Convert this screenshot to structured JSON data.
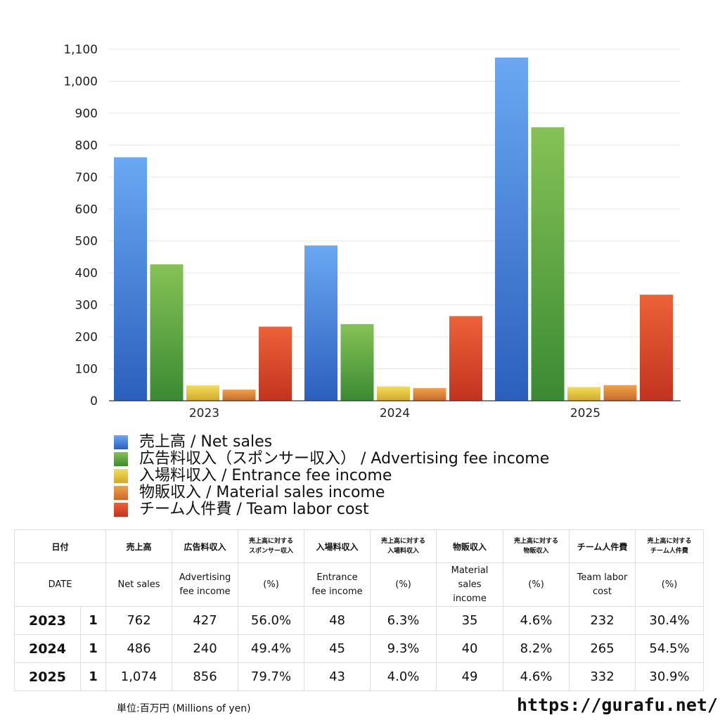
{
  "chart_data": {
    "type": "bar",
    "categories": [
      "2023",
      "2024",
      "2025"
    ],
    "ylim": [
      0,
      1100
    ],
    "yticks": [
      "0",
      "100",
      "200",
      "300",
      "400",
      "500",
      "600",
      "700",
      "800",
      "900",
      "1,000",
      "1,100"
    ],
    "grid": true,
    "legend_position": "bottom-left",
    "series": [
      {
        "name": "売上高 / Net sales",
        "values": [
          762,
          486,
          1074
        ],
        "color_top": "#6aa8f3",
        "color_bottom": "#2b5fbd"
      },
      {
        "name": "広告料収入（スポンサー収入） / Advertising fee income",
        "values": [
          427,
          240,
          856
        ],
        "color_top": "#86c256",
        "color_bottom": "#3a8a33"
      },
      {
        "name": "入場料収入 / Entrance fee income",
        "values": [
          48,
          45,
          43
        ],
        "color_top": "#f3dc5a",
        "color_bottom": "#d2a82a"
      },
      {
        "name": "物販収入 / Material sales income",
        "values": [
          35,
          40,
          49
        ],
        "color_top": "#eea24d",
        "color_bottom": "#c9692a"
      },
      {
        "name": "チーム人件費 / Team labor cost",
        "values": [
          232,
          265,
          332
        ],
        "color_top": "#ec6238",
        "color_bottom": "#c2331f"
      }
    ]
  },
  "table": {
    "header_jp": [
      "日付",
      "売上高",
      "広告料収入",
      "売上高に対する\nスポンサー収入",
      "入場料収入",
      "売上高に対する\n入場料収入",
      "物販収入",
      "売上高に対する\n物販収入",
      "チーム人件費",
      "売上高に対する\nチーム人件費"
    ],
    "header_en": [
      "DATE",
      "Net sales",
      "Advertising\nfee income",
      "(%)",
      "Entrance\nfee income",
      "(%)",
      "Material\nsales\nincome",
      "(%)",
      "Team labor\ncost",
      "(%)"
    ],
    "rows": [
      {
        "year": "2023",
        "count": "1",
        "cells": [
          "762",
          "427",
          "56.0%",
          "48",
          "6.3%",
          "35",
          "4.6%",
          "232",
          "30.4%"
        ]
      },
      {
        "year": "2024",
        "count": "1",
        "cells": [
          "486",
          "240",
          "49.4%",
          "45",
          "9.3%",
          "40",
          "8.2%",
          "265",
          "54.5%"
        ]
      },
      {
        "year": "2025",
        "count": "1",
        "cells": [
          "1,074",
          "856",
          "79.7%",
          "43",
          "4.0%",
          "49",
          "4.6%",
          "332",
          "30.9%"
        ]
      }
    ]
  },
  "footer": {
    "unit_note": "単位:百万円 (Millions of yen)",
    "url": "https://gurafu.net/"
  }
}
